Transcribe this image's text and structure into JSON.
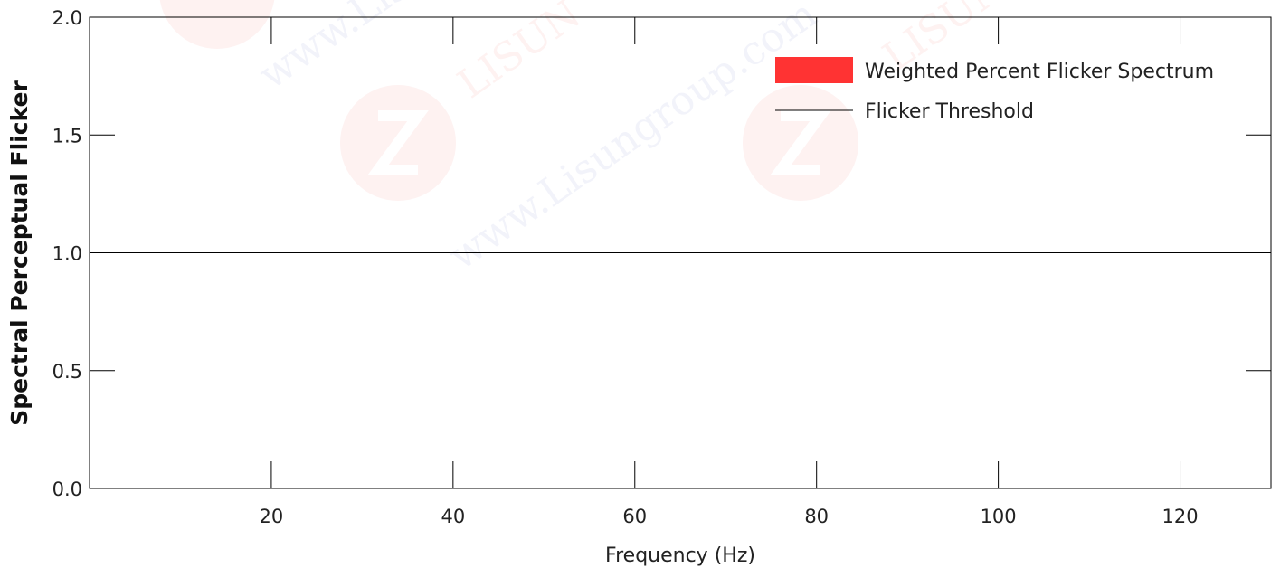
{
  "chart_data": {
    "type": "bar",
    "xlabel": "Frequency (Hz)",
    "ylabel": "Spectral Perceptual Flicker",
    "xlim": [
      0,
      130
    ],
    "ylim": [
      0,
      2.0
    ],
    "x_ticks": [
      20,
      40,
      60,
      80,
      100,
      120
    ],
    "x_tick_labels": [
      "20",
      "40",
      "60",
      "80",
      "100",
      "120"
    ],
    "y_ticks": [
      0.0,
      0.5,
      1.0,
      1.5,
      2.0
    ],
    "y_tick_labels": [
      "0.0",
      "0.5",
      "1.0",
      "1.5",
      "2.0"
    ],
    "grid": false,
    "legend_position": "top-right",
    "series": [
      {
        "name": "Weighted Percent Flicker Spectrum",
        "kind": "bar",
        "color": "#ff3333",
        "x": [],
        "values": []
      },
      {
        "name": "Flicker Threshold",
        "kind": "line",
        "color": "#000000",
        "x": [
          0,
          130
        ],
        "values": [
          1.0,
          1.0
        ]
      }
    ]
  },
  "watermark": {
    "text": "www.Lisungroup.com",
    "brand": "LISUN",
    "color": "#e53935"
  }
}
